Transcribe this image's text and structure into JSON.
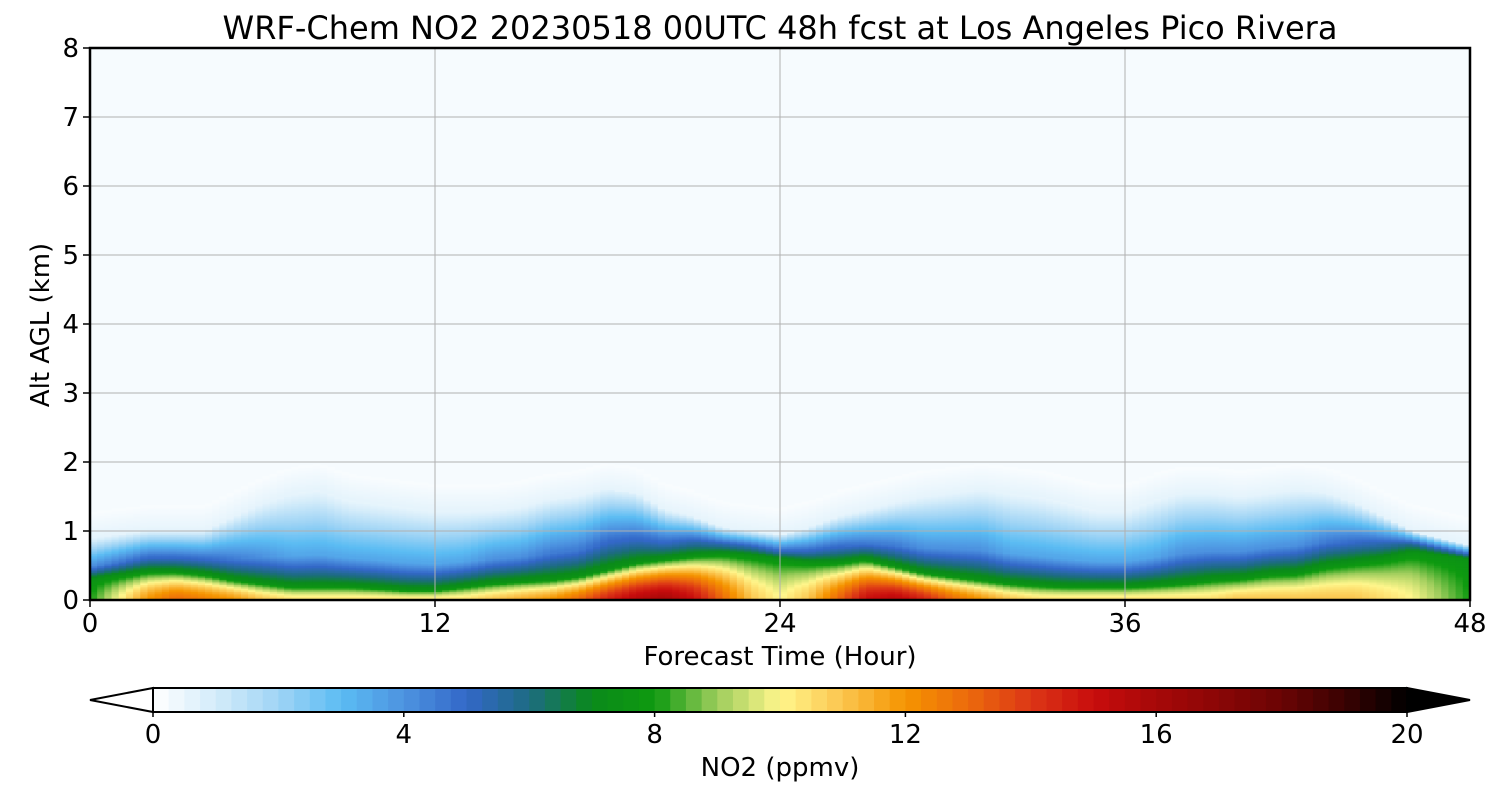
{
  "chart_data": {
    "type": "heatmap",
    "title": "WRF-Chem NO2  20230518 00UTC 48h fcst at Los Angeles Pico Rivera",
    "xlabel": "Forecast Time (Hour)",
    "ylabel": "Alt AGL (km)",
    "xlim": [
      0,
      48
    ],
    "ylim": [
      0,
      8
    ],
    "x_ticks": [
      "0",
      "12",
      "24",
      "36",
      "48"
    ],
    "y_ticks": [
      "0",
      "1",
      "2",
      "3",
      "4",
      "5",
      "6",
      "7",
      "8"
    ],
    "grid": true,
    "colorbar": {
      "label": "NO2  (ppmv)",
      "range": [
        0,
        20
      ],
      "extend": "both",
      "ticks": [
        "0",
        "4",
        "8",
        "12",
        "16",
        "20"
      ]
    },
    "profile": {
      "hour": [
        0,
        2,
        3,
        4,
        5,
        6,
        7,
        8,
        9,
        10,
        11,
        12,
        13,
        14,
        15,
        16,
        17,
        18,
        19,
        20,
        21,
        22,
        23,
        24,
        25,
        26,
        27,
        28,
        29,
        30,
        31,
        32,
        33,
        34,
        35,
        36,
        37,
        38,
        39,
        40,
        41,
        42,
        43,
        44,
        45,
        46,
        47,
        48
      ],
      "surface_no2": [
        8,
        12,
        13,
        12.5,
        12,
        11,
        10.5,
        10.5,
        10.5,
        10.5,
        10.5,
        10.5,
        10.5,
        11,
        11.5,
        12,
        13,
        14.5,
        15.5,
        16,
        15,
        13,
        11,
        10,
        11,
        13,
        15,
        15.5,
        14.5,
        13,
        12,
        11,
        10.5,
        10.5,
        10.5,
        10.5,
        10.5,
        10.5,
        10.5,
        11,
        11,
        11,
        11,
        11,
        10.5,
        10,
        9,
        8
      ],
      "green_layer_top_km": [
        0.3,
        0.42,
        0.42,
        0.38,
        0.3,
        0.25,
        0.2,
        0.2,
        0.2,
        0.18,
        0.15,
        0.15,
        0.2,
        0.25,
        0.28,
        0.3,
        0.35,
        0.45,
        0.55,
        0.6,
        0.65,
        0.68,
        0.65,
        0.6,
        0.55,
        0.55,
        0.6,
        0.5,
        0.4,
        0.35,
        0.3,
        0.25,
        0.22,
        0.2,
        0.2,
        0.2,
        0.22,
        0.25,
        0.3,
        0.32,
        0.38,
        0.4,
        0.5,
        0.55,
        0.6,
        0.7,
        0.65,
        0.6
      ],
      "blue_layer_top_km": [
        0.9,
        1.0,
        1.0,
        1.0,
        1.2,
        1.4,
        1.55,
        1.6,
        1.45,
        1.4,
        1.35,
        1.3,
        1.3,
        1.3,
        1.35,
        1.45,
        1.5,
        1.6,
        1.55,
        1.3,
        1.2,
        1.05,
        1.0,
        0.95,
        1.05,
        1.2,
        1.3,
        1.4,
        1.5,
        1.55,
        1.6,
        1.55,
        1.5,
        1.4,
        1.3,
        1.3,
        1.45,
        1.55,
        1.55,
        1.5,
        1.55,
        1.6,
        1.55,
        1.4,
        1.2,
        1.0,
        0.9,
        0.8
      ],
      "peak_no2_aloft": [
        4,
        5,
        5,
        5,
        4.5,
        4,
        3.5,
        3.5,
        3.5,
        3.5,
        3.5,
        3.5,
        3.5,
        4,
        4,
        4.5,
        4.5,
        5,
        5,
        5,
        5.5,
        5.5,
        5.5,
        5,
        5,
        5,
        4.5,
        4.5,
        4,
        4,
        4,
        3.5,
        3.5,
        3.5,
        3.5,
        3.5,
        3.5,
        4,
        4,
        4,
        4,
        4,
        4.5,
        5,
        5.5,
        6,
        5.5,
        5
      ]
    },
    "colors": {
      "stops": [
        [
          0,
          "#ffffff"
        ],
        [
          1,
          "#d4ecfa"
        ],
        [
          2,
          "#9fd4f5"
        ],
        [
          3,
          "#5bbcf3"
        ],
        [
          4,
          "#4d93e0"
        ],
        [
          5,
          "#3368c8"
        ],
        [
          6,
          "#1d6b82"
        ],
        [
          7,
          "#0a8a1a"
        ],
        [
          8,
          "#0e9a10"
        ],
        [
          9,
          "#9ecd5c"
        ],
        [
          10,
          "#fff68c"
        ],
        [
          11,
          "#fbc54e"
        ],
        [
          12,
          "#f59400"
        ],
        [
          13,
          "#ec6a0c"
        ],
        [
          14,
          "#dc3616"
        ],
        [
          15,
          "#c80d0d"
        ],
        [
          16,
          "#a60808"
        ],
        [
          17,
          "#8a0606"
        ],
        [
          18,
          "#6a0404"
        ],
        [
          19,
          "#3a0202"
        ],
        [
          20,
          "#000000"
        ]
      ],
      "background": "#f6fbfe",
      "grid": "#b0b0b0"
    }
  }
}
